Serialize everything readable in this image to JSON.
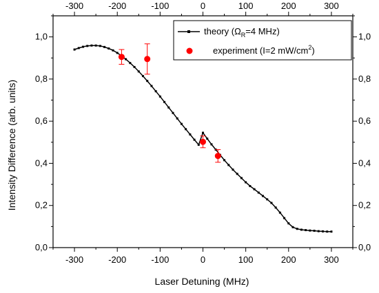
{
  "chart_data": {
    "type": "line",
    "xlabel": "Laser Detuning (MHz)",
    "ylabel": "Intensity Difference (arb. units)",
    "xlim": [
      -350,
      350
    ],
    "ylim": [
      0.0,
      1.1
    ],
    "xticks": [
      -300,
      -200,
      -100,
      0,
      100,
      200,
      300
    ],
    "xtick_labels": [
      "-300",
      "-200",
      "-100",
      "0",
      "100",
      "200",
      "300"
    ],
    "yticks": [
      0.0,
      0.2,
      0.4,
      0.6,
      0.8,
      1.0
    ],
    "ytick_labels": [
      "0,0",
      "0,2",
      "0,4",
      "0,6",
      "0,8",
      "1,0"
    ],
    "grid": false,
    "legend_position": "top-right",
    "mirror_axes": "top and right axes repeat the tick labels",
    "series": [
      {
        "name": "theory",
        "legend_parts": [
          "theory (",
          "Ω",
          "R",
          "=4 MHz)"
        ],
        "style": "line-with-square-markers",
        "color": "#000000",
        "x": [
          -300,
          -290,
          -280,
          -270,
          -260,
          -250,
          -240,
          -230,
          -220,
          -210,
          -200,
          -190,
          -180,
          -170,
          -160,
          -150,
          -140,
          -130,
          -120,
          -110,
          -100,
          -90,
          -80,
          -70,
          -60,
          -50,
          -40,
          -30,
          -20,
          -10,
          0,
          10,
          20,
          30,
          40,
          50,
          60,
          70,
          80,
          90,
          100,
          110,
          120,
          130,
          140,
          150,
          160,
          170,
          180,
          190,
          200,
          210,
          220,
          230,
          240,
          250,
          260,
          270,
          280,
          290,
          300
        ],
        "y": [
          0.94,
          0.947,
          0.953,
          0.957,
          0.959,
          0.959,
          0.957,
          0.952,
          0.945,
          0.936,
          0.924,
          0.91,
          0.894,
          0.876,
          0.857,
          0.836,
          0.814,
          0.791,
          0.767,
          0.742,
          0.717,
          0.691,
          0.665,
          0.639,
          0.613,
          0.587,
          0.562,
          0.537,
          0.512,
          0.488,
          0.545,
          0.517,
          0.49,
          0.465,
          0.44,
          0.415,
          0.392,
          0.37,
          0.35,
          0.33,
          0.31,
          0.292,
          0.277,
          0.261,
          0.245,
          0.229,
          0.212,
          0.19,
          0.166,
          0.14,
          0.115,
          0.097,
          0.089,
          0.085,
          0.083,
          0.081,
          0.08,
          0.078,
          0.077,
          0.076,
          0.076
        ]
      },
      {
        "name": "experiment",
        "legend_parts": [
          "experiment (I=2 mW/cm",
          "2",
          ")"
        ],
        "style": "markers-with-error-bars",
        "color": "#ff0000",
        "x": [
          -190,
          -130,
          0,
          35
        ],
        "y": [
          0.905,
          0.895,
          0.502,
          0.435
        ],
        "err": [
          0.035,
          0.072,
          0.028,
          0.03
        ]
      }
    ]
  }
}
